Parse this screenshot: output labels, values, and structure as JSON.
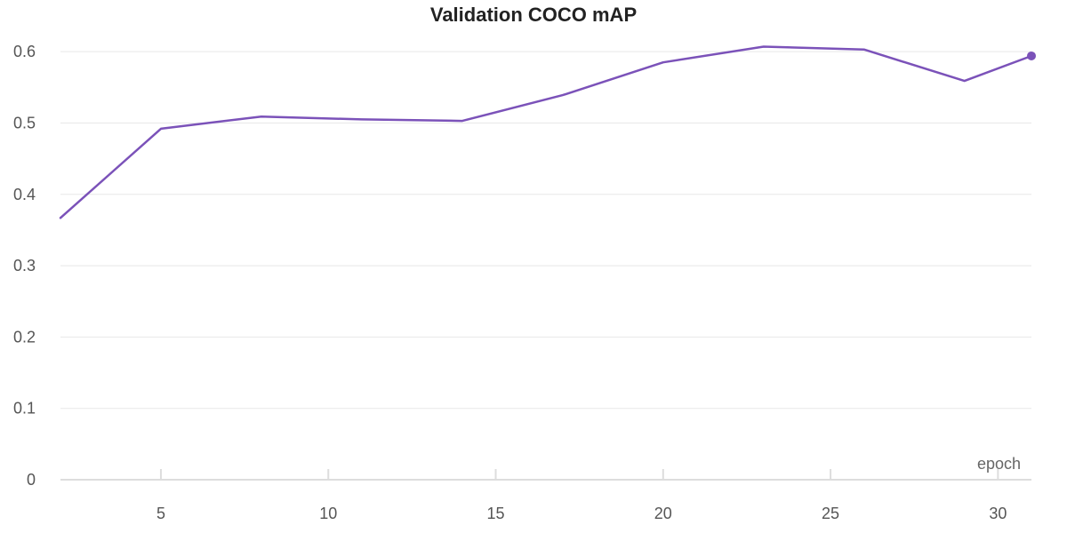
{
  "chart_data": {
    "type": "line",
    "title": "Validation COCO mAP",
    "xlabel": "epoch",
    "ylabel": "",
    "xlim": [
      2,
      31
    ],
    "ylim": [
      0,
      0.65
    ],
    "x_ticks": [
      5,
      10,
      15,
      20,
      25,
      30
    ],
    "y_ticks": [
      0,
      0.1,
      0.2,
      0.3,
      0.4,
      0.5,
      0.6
    ],
    "grid": true,
    "legend": "none",
    "series": [
      {
        "name": "Validation COCO mAP",
        "color": "#7b52b9",
        "x": [
          2,
          5,
          8,
          11,
          14,
          17,
          20,
          23,
          26,
          29,
          31
        ],
        "values": [
          0.367,
          0.492,
          0.509,
          0.505,
          0.503,
          0.539,
          0.585,
          0.607,
          0.603,
          0.559,
          0.594
        ],
        "end_marker": true
      }
    ]
  }
}
